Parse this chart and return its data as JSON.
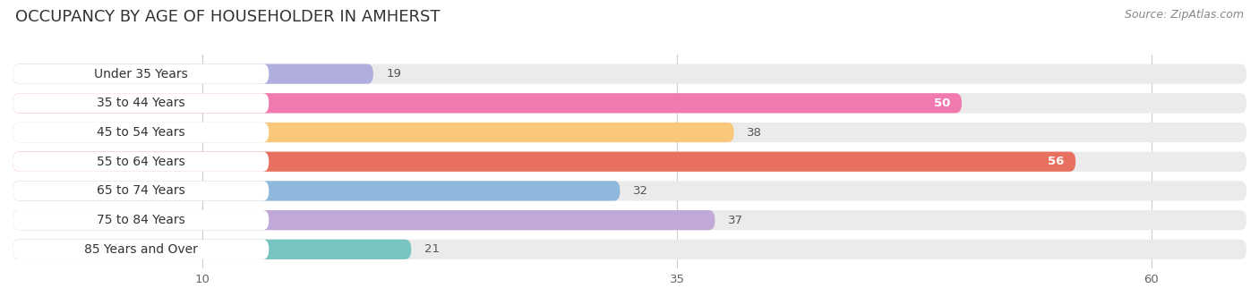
{
  "title": "OCCUPANCY BY AGE OF HOUSEHOLDER IN AMHERST",
  "source": "Source: ZipAtlas.com",
  "categories": [
    "Under 35 Years",
    "35 to 44 Years",
    "45 to 54 Years",
    "55 to 64 Years",
    "65 to 74 Years",
    "75 to 84 Years",
    "85 Years and Over"
  ],
  "values": [
    19,
    50,
    38,
    56,
    32,
    37,
    21
  ],
  "bar_colors": [
    "#b0aedd",
    "#f07ab0",
    "#f9c87a",
    "#e87060",
    "#90b8dc",
    "#c0a8d8",
    "#78c4c0"
  ],
  "xlim": [
    0,
    65
  ],
  "xticks": [
    10,
    35,
    60
  ],
  "background_color": "#ffffff",
  "bar_bg_color": "#ebebeb",
  "title_fontsize": 13,
  "label_fontsize": 10,
  "value_fontsize": 9.5,
  "source_fontsize": 9
}
